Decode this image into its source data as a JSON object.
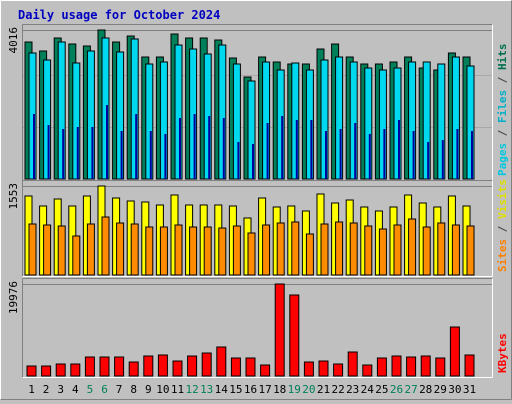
{
  "chart_data": {
    "title": "Daily usage for October 2024",
    "days": [
      "1",
      "2",
      "3",
      "4",
      "5",
      "6",
      "7",
      "8",
      "9",
      "10",
      "11",
      "12",
      "13",
      "14",
      "15",
      "16",
      "17",
      "18",
      "19",
      "20",
      "21",
      "22",
      "23",
      "24",
      "25",
      "26",
      "27",
      "28",
      "29",
      "30",
      "31"
    ],
    "weekend_days": [
      "5",
      "6",
      "12",
      "13",
      "19",
      "20",
      "26",
      "27"
    ],
    "panels": [
      {
        "type": "bar",
        "tick_label": "4016",
        "ymax": 4016,
        "side_labels": [
          {
            "text": "Pages",
            "color": "#00c8e0"
          },
          {
            "text": " / ",
            "color": "#404040"
          },
          {
            "text": "Files",
            "color": "#00b0c8"
          },
          {
            "text": " / ",
            "color": "#404040"
          },
          {
            "text": "Hits",
            "color": "#007050"
          }
        ],
        "series": [
          {
            "name": "Hits",
            "color": "#00805a",
            "values": [
              3700,
              3450,
              3800,
              3650,
              3580,
              4016,
              3680,
              3860,
              3300,
              3300,
              3900,
              3800,
              3800,
              3750,
              3250,
              2750,
              3300,
              3150,
              3100,
              3100,
              3500,
              3650,
              3300,
              3100,
              3100,
              3150,
              3300,
              3000,
              2950,
              3400,
              3300
            ]
          },
          {
            "name": "Files",
            "color": "#00d8f0",
            "values": [
              3400,
              3200,
              3700,
              3120,
              3460,
              3800,
              3420,
              3770,
              3100,
              3150,
              3600,
              3500,
              3370,
              3600,
              3100,
              2650,
              3150,
              2950,
              3120,
              2950,
              3200,
              3300,
              3150,
              3000,
              2950,
              3000,
              3150,
              3150,
              3100,
              3300,
              3050
            ]
          },
          {
            "name": "Pages",
            "color": "#0000a0",
            "values": [
              1750,
              1450,
              1350,
              1400,
              1400,
              2000,
              1300,
              1750,
              1300,
              1200,
              1650,
              1750,
              1700,
              1650,
              1000,
              950,
              1500,
              1700,
              1600,
              1600,
              1300,
              1350,
              1500,
              1200,
              1350,
              1600,
              1300,
              1000,
              1050,
              1350,
              1300
            ]
          }
        ]
      },
      {
        "type": "bar",
        "tick_label": "1553",
        "ymax": 1553,
        "side_labels": [
          {
            "text": "Sites",
            "color": "#ff8000"
          },
          {
            "text": " / ",
            "color": "#404040"
          },
          {
            "text": "Visits",
            "color": "#e0e000"
          }
        ],
        "series": [
          {
            "name": "Visits",
            "color": "#ffff00",
            "values": [
              1380,
              1210,
              1320,
              1210,
              1380,
              1553,
              1350,
              1290,
              1280,
              1220,
              1390,
              1230,
              1230,
              1220,
              1200,
              1000,
              1340,
              1180,
              1200,
              1110,
              1410,
              1260,
              1300,
              1180,
              1120,
              1180,
              1390,
              1260,
              1190,
              1370,
              1210
            ]
          },
          {
            "name": "Sites",
            "color": "#ff8c00",
            "values": [
              890,
              880,
              850,
              680,
              890,
              1020,
              910,
              890,
              840,
              830,
              880,
              830,
              840,
              820,
              850,
              740,
              870,
              900,
              920,
              720,
              890,
              920,
              900,
              860,
              810,
              880,
              970,
              830,
              900,
              880,
              860
            ]
          }
        ]
      },
      {
        "type": "bar",
        "tick_label": "19976",
        "ymax": 19976,
        "side_labels": [
          {
            "text": "KBytes",
            "color": "#ff0000"
          }
        ],
        "series": [
          {
            "name": "KBytes",
            "color": "#ff0000",
            "values": [
              2200,
              2200,
              2700,
              2500,
              4200,
              4100,
              4100,
              3100,
              4400,
              4600,
              3300,
              4400,
              4900,
              6400,
              3800,
              3800,
              2300,
              19976,
              17500,
              3100,
              3300,
              2500,
              5300,
              2300,
              4000,
              4300,
              4100,
              4300,
              4000,
              10600,
              4600
            ]
          }
        ]
      }
    ]
  }
}
